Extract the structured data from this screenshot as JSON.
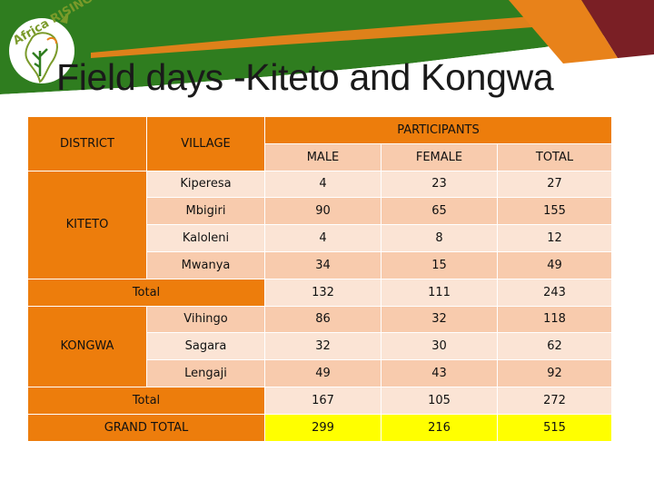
{
  "slide": {
    "title": "Field days -Kiteto and Kongwa",
    "logo_text": "Africa RISING"
  },
  "colors": {
    "header_orange": "#ed7d0c",
    "row_pink_dark": "#f8cbad",
    "row_pink_light": "#fbe4d5",
    "grand_total_yellow": "#ffff00",
    "banner_green": "#2f7d1f",
    "banner_orange": "#e8821a",
    "banner_maroon": "#7a1f25"
  },
  "table": {
    "headers": {
      "district": "DISTRICT",
      "village": "VILLAGE",
      "participants": "PARTICIPANTS",
      "male": "MALE",
      "female": "FEMALE",
      "total": "TOTAL"
    },
    "kiteto": {
      "district": "KITETO",
      "rows": [
        {
          "village": "Kiperesa",
          "male": "4",
          "female": "23",
          "total": "27"
        },
        {
          "village": "Mbigiri",
          "male": "90",
          "female": "65",
          "total": "155"
        },
        {
          "village": "Kaloleni",
          "male": "4",
          "female": "8",
          "total": "12"
        },
        {
          "village": "Mwanya",
          "male": "34",
          "female": "15",
          "total": "49"
        }
      ],
      "total": {
        "label": "Total",
        "male": "132",
        "female": "111",
        "total": "243"
      }
    },
    "kongwa": {
      "district": "KONGWA",
      "rows": [
        {
          "village": "Vihingo",
          "male": "86",
          "female": "32",
          "total": "118"
        },
        {
          "village": "Sagara",
          "male": "32",
          "female": "30",
          "total": "62"
        },
        {
          "village": "Lengaji",
          "male": "49",
          "female": "43",
          "total": "92"
        }
      ],
      "total": {
        "label": "Total",
        "male": "167",
        "female": "105",
        "total": "272"
      }
    },
    "grand_total": {
      "label": "GRAND TOTAL",
      "male": "299",
      "female": "216",
      "total": "515"
    }
  }
}
